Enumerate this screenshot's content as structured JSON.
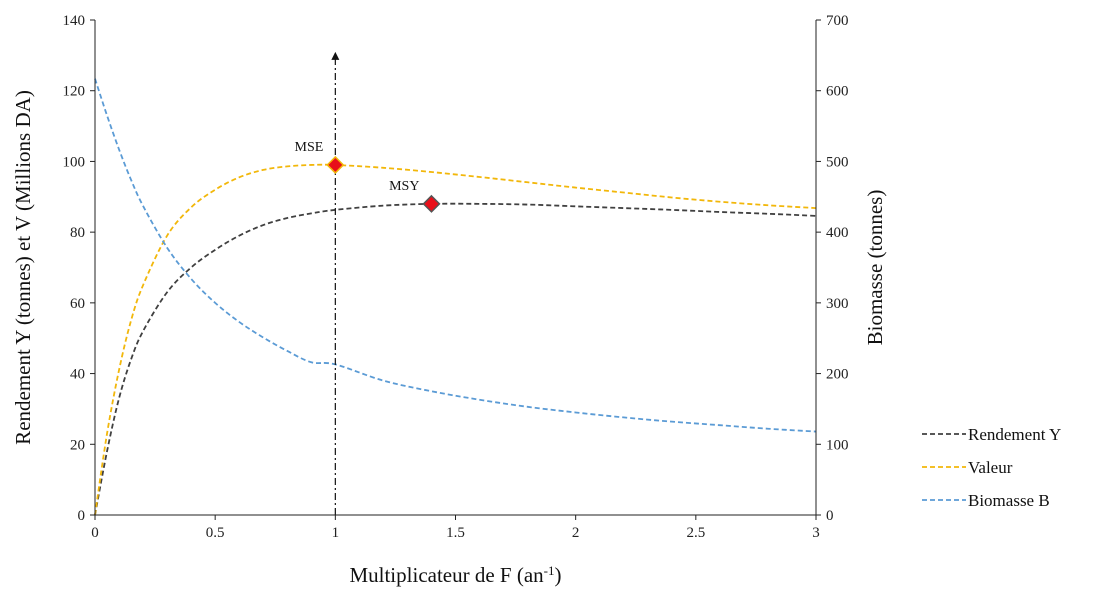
{
  "chart_data": {
    "type": "line",
    "xlabel": "Multiplicateur de F (an",
    "xlabel_sup": "-1",
    "xlabel_end": ")",
    "ylabel_left": "Rendement  Y (tonnes) et V  (Millions DA)",
    "ylabel_right": "Biomasse   (tonnes)",
    "xlim": [
      0,
      3
    ],
    "ylim_left": [
      0,
      140
    ],
    "ylim_right": [
      0,
      700
    ],
    "x_ticks": [
      0,
      0.5,
      1,
      1.5,
      2,
      2.5,
      3
    ],
    "x_tick_labels": [
      "0",
      "0.5",
      "1",
      "1.5",
      "2",
      "2.5",
      "3"
    ],
    "y_left_ticks": [
      0,
      20,
      40,
      60,
      80,
      100,
      120,
      140
    ],
    "y_left_tick_labels": [
      "0",
      "20",
      "40",
      "60",
      "80",
      "100",
      "120",
      "140"
    ],
    "y_right_ticks": [
      0,
      100,
      200,
      300,
      400,
      500,
      600,
      700
    ],
    "y_right_tick_labels": [
      "0",
      "100",
      "200",
      "300",
      "400",
      "500",
      "600",
      "700"
    ],
    "grid": false,
    "legend_position": "right",
    "x": [
      0,
      0.05,
      0.1,
      0.15,
      0.2,
      0.3,
      0.4,
      0.5,
      0.6,
      0.7,
      0.8,
      0.9,
      1.0,
      1.2,
      1.4,
      1.6,
      1.8,
      2.0,
      2.2,
      2.4,
      2.6,
      2.8,
      3.0
    ],
    "series": [
      {
        "name": "Rendement Y",
        "axis": "left",
        "color": "#404040",
        "values": [
          0,
          18,
          33,
          44,
          52,
          63,
          70,
          75,
          79,
          82,
          84,
          85.3,
          86.3,
          87.5,
          88.0,
          88.0,
          87.8,
          87.3,
          86.8,
          86.3,
          85.7,
          85.2,
          84.6
        ]
      },
      {
        "name": "Valeur",
        "axis": "left",
        "color": "#f2b70a",
        "values": [
          0,
          23,
          41,
          55,
          65,
          79,
          87,
          92,
          95.5,
          97.6,
          98.6,
          99.0,
          99.0,
          98.2,
          97.0,
          95.6,
          94.1,
          92.6,
          91.2,
          89.8,
          88.6,
          87.6,
          86.8
        ]
      },
      {
        "name": "Biomasse B",
        "axis": "right",
        "color": "#5b9bd5",
        "values": [
          617,
          565,
          517,
          474,
          437,
          378,
          334,
          300,
          273,
          251,
          232,
          216,
          213,
          190,
          175,
          163,
          153,
          145,
          138,
          132,
          127,
          122,
          118
        ]
      }
    ],
    "points": [
      {
        "label": "MSE",
        "x": 1.0,
        "y": 99,
        "axis": "left"
      },
      {
        "label": "MSY",
        "x": 1.4,
        "y": 88,
        "axis": "left"
      }
    ],
    "vertical_marker": {
      "x": 1.0,
      "y_top": 131
    },
    "point_color": "#e8101a",
    "point_edge_color": "#f2b70a"
  }
}
